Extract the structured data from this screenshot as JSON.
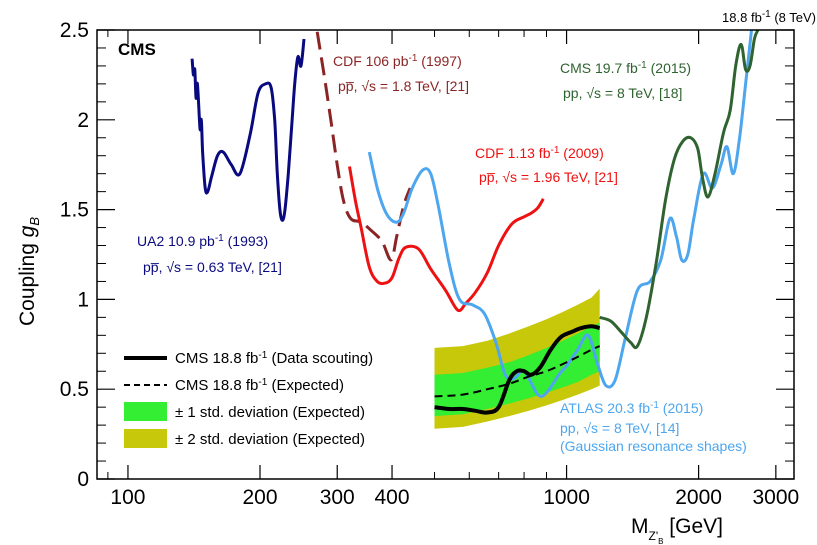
{
  "chart_data": {
    "type": "line",
    "x_axis": {
      "scale": "log",
      "range": [
        85,
        3300
      ],
      "ticks": [
        100,
        200,
        300,
        400,
        1000,
        2000,
        3000
      ],
      "tick_labels": [
        "100",
        "200",
        "300",
        "400",
        "1000",
        "2000",
        "3000"
      ],
      "label_main": "M",
      "label_sub": "Z'",
      "label_subsub": "B",
      "label_unit": " [GeV]"
    },
    "y_axis": {
      "scale": "linear",
      "range": [
        0,
        2.5
      ],
      "ticks": [
        0,
        0.5,
        1,
        1.5,
        2,
        2.5
      ],
      "tick_labels": [
        "0",
        "0.5",
        "1",
        "1.5",
        "2",
        "2.5"
      ],
      "label_main": "Coupling ",
      "label_g": "g",
      "label_sub": "B"
    },
    "top_right": {
      "lumi": "18.8 fb",
      "sup": "-1",
      "energy": " (8 TeV)"
    },
    "experiment": "CMS",
    "colors": {
      "ua2": "#0a0a80",
      "cdf1997": "#8b2525",
      "cdf2009": "#ee1111",
      "atlas": "#4da6ee",
      "cms2015": "#2f632f",
      "band1": "#33ee33",
      "band2": "#c8c80a",
      "observed": "#000000",
      "expected": "#000000"
    },
    "series": [
      {
        "name": "UA2 10.9 pb-1 (1993)",
        "color": "#0a0a80",
        "style": "solid",
        "width": 3,
        "points": [
          [
            140,
            2.34
          ],
          [
            141,
            2.25
          ],
          [
            142,
            2.28
          ],
          [
            143,
            2.12
          ],
          [
            144,
            2.2
          ],
          [
            146,
            1.95
          ],
          [
            147,
            2.0
          ],
          [
            148,
            1.82
          ],
          [
            150,
            1.62
          ],
          [
            152,
            1.6
          ],
          [
            155,
            1.68
          ],
          [
            160,
            1.8
          ],
          [
            165,
            1.82
          ],
          [
            172,
            1.75
          ],
          [
            180,
            1.7
          ],
          [
            190,
            1.92
          ],
          [
            198,
            2.15
          ],
          [
            206,
            2.2
          ],
          [
            212,
            2.18
          ],
          [
            216,
            2.0
          ],
          [
            219,
            1.7
          ],
          [
            222,
            1.5
          ],
          [
            225,
            1.44
          ],
          [
            228,
            1.5
          ],
          [
            232,
            1.7
          ],
          [
            236,
            1.95
          ],
          [
            240,
            2.2
          ],
          [
            244,
            2.35
          ],
          [
            248,
            2.3
          ],
          [
            252,
            2.45
          ]
        ]
      },
      {
        "name": "CDF 106 pb-1 (1997)",
        "color": "#8b2525",
        "style": "dashed",
        "width": 3,
        "points": [
          [
            270,
            2.49
          ],
          [
            280,
            2.25
          ],
          [
            290,
            2.0
          ],
          [
            300,
            1.75
          ],
          [
            310,
            1.55
          ],
          [
            322,
            1.45
          ],
          [
            340,
            1.43
          ],
          [
            360,
            1.38
          ],
          [
            380,
            1.32
          ],
          [
            398,
            1.22
          ],
          [
            410,
            1.35
          ],
          [
            425,
            1.52
          ],
          [
            440,
            1.62
          ]
        ]
      },
      {
        "name": "CDF 1.13 fb-1 (2009)",
        "color": "#ee1111",
        "style": "solid",
        "width": 3,
        "points": [
          [
            320,
            1.74
          ],
          [
            330,
            1.55
          ],
          [
            340,
            1.4
          ],
          [
            355,
            1.18
          ],
          [
            370,
            1.1
          ],
          [
            385,
            1.09
          ],
          [
            400,
            1.12
          ],
          [
            415,
            1.23
          ],
          [
            430,
            1.29
          ],
          [
            460,
            1.28
          ],
          [
            490,
            1.17
          ],
          [
            530,
            1.05
          ],
          [
            565,
            0.94
          ],
          [
            590,
            0.98
          ],
          [
            620,
            1.04
          ],
          [
            660,
            1.15
          ],
          [
            700,
            1.3
          ],
          [
            750,
            1.42
          ],
          [
            800,
            1.46
          ],
          [
            830,
            1.48
          ],
          [
            860,
            1.51
          ],
          [
            885,
            1.56
          ]
        ]
      },
      {
        "name": "ATLAS 20.3 fb-1 (2015)",
        "color": "#4da6ee",
        "style": "solid",
        "width": 3,
        "points": [
          [
            355,
            1.82
          ],
          [
            372,
            1.6
          ],
          [
            390,
            1.47
          ],
          [
            410,
            1.43
          ],
          [
            425,
            1.48
          ],
          [
            445,
            1.62
          ],
          [
            470,
            1.72
          ],
          [
            490,
            1.7
          ],
          [
            510,
            1.52
          ],
          [
            540,
            1.2
          ],
          [
            570,
            1.0
          ],
          [
            610,
            0.97
          ],
          [
            650,
            0.92
          ],
          [
            690,
            0.76
          ],
          [
            725,
            0.58
          ],
          [
            760,
            0.56
          ],
          [
            800,
            0.6
          ],
          [
            860,
            0.47
          ],
          [
            900,
            0.48
          ],
          [
            960,
            0.58
          ],
          [
            1000,
            0.63
          ],
          [
            1060,
            0.72
          ],
          [
            1120,
            0.8
          ],
          [
            1180,
            0.63
          ],
          [
            1230,
            0.52
          ],
          [
            1290,
            0.55
          ],
          [
            1360,
            0.78
          ],
          [
            1450,
            1.05
          ],
          [
            1550,
            1.1
          ],
          [
            1640,
            1.22
          ],
          [
            1720,
            1.45
          ],
          [
            1780,
            1.35
          ],
          [
            1830,
            1.22
          ],
          [
            1890,
            1.25
          ],
          [
            1950,
            1.45
          ],
          [
            2050,
            1.7
          ],
          [
            2150,
            1.62
          ],
          [
            2250,
            1.75
          ],
          [
            2320,
            1.85
          ],
          [
            2400,
            1.7
          ],
          [
            2480,
            1.9
          ],
          [
            2560,
            2.2
          ],
          [
            2640,
            2.5
          ]
        ]
      },
      {
        "name": "CMS 19.7 fb-1 (2015)",
        "color": "#2f632f",
        "style": "solid",
        "width": 3,
        "points": [
          [
            1190,
            0.9
          ],
          [
            1260,
            0.88
          ],
          [
            1330,
            0.82
          ],
          [
            1400,
            0.76
          ],
          [
            1450,
            0.74
          ],
          [
            1520,
            0.9
          ],
          [
            1600,
            1.2
          ],
          [
            1680,
            1.55
          ],
          [
            1760,
            1.78
          ],
          [
            1840,
            1.88
          ],
          [
            1920,
            1.9
          ],
          [
            1990,
            1.84
          ],
          [
            2040,
            1.68
          ],
          [
            2100,
            1.57
          ],
          [
            2180,
            1.7
          ],
          [
            2280,
            1.93
          ],
          [
            2360,
            2.05
          ],
          [
            2430,
            2.3
          ],
          [
            2500,
            2.42
          ],
          [
            2560,
            2.28
          ],
          [
            2620,
            2.3
          ],
          [
            2680,
            2.45
          ],
          [
            2730,
            2.5
          ]
        ]
      },
      {
        "name": "CMS 18.8 fb-1 (Data scouting)",
        "color": "#000000",
        "style": "solid",
        "width": 4,
        "points": [
          [
            500,
            0.4
          ],
          [
            540,
            0.39
          ],
          [
            580,
            0.39
          ],
          [
            620,
            0.38
          ],
          [
            660,
            0.37
          ],
          [
            700,
            0.4
          ],
          [
            740,
            0.55
          ],
          [
            770,
            0.6
          ],
          [
            800,
            0.6
          ],
          [
            830,
            0.58
          ],
          [
            870,
            0.62
          ],
          [
            920,
            0.72
          ],
          [
            970,
            0.79
          ],
          [
            1030,
            0.82
          ],
          [
            1080,
            0.84
          ],
          [
            1140,
            0.85
          ],
          [
            1190,
            0.84
          ]
        ]
      },
      {
        "name": "CMS 18.8 fb-1 (Expected)",
        "color": "#000000",
        "style": "dashed",
        "width": 2,
        "points": [
          [
            500,
            0.46
          ],
          [
            580,
            0.47
          ],
          [
            660,
            0.5
          ],
          [
            740,
            0.53
          ],
          [
            820,
            0.57
          ],
          [
            900,
            0.6
          ],
          [
            980,
            0.64
          ],
          [
            1060,
            0.68
          ],
          [
            1140,
            0.72
          ],
          [
            1190,
            0.74
          ]
        ]
      }
    ],
    "bands": {
      "x": [
        500,
        580,
        660,
        740,
        820,
        900,
        980,
        1060,
        1140,
        1190
      ],
      "sigma1_lo": [
        0.35,
        0.36,
        0.39,
        0.42,
        0.45,
        0.48,
        0.51,
        0.54,
        0.58,
        0.6
      ],
      "sigma1_hi": [
        0.58,
        0.59,
        0.62,
        0.65,
        0.69,
        0.73,
        0.77,
        0.81,
        0.85,
        0.87
      ],
      "sigma2_lo": [
        0.28,
        0.29,
        0.32,
        0.35,
        0.38,
        0.41,
        0.44,
        0.47,
        0.5,
        0.52
      ],
      "sigma2_hi": [
        0.73,
        0.74,
        0.77,
        0.81,
        0.85,
        0.89,
        0.93,
        0.97,
        1.01,
        1.06
      ]
    }
  },
  "annotations": {
    "ua2": {
      "line1_a": "UA2 10.9 pb",
      "line1_sup": "-1",
      "line1_b": " (1993)",
      "line2": "pp̅, √s = 0.63 TeV, [21]"
    },
    "cdf1997": {
      "line1_a": "CDF 106 pb",
      "line1_sup": "-1",
      "line1_b": " (1997)",
      "line2": "pp̅, √s = 1.8 TeV, [21]"
    },
    "cdf2009": {
      "line1_a": "CDF 1.13 fb",
      "line1_sup": "-1",
      "line1_b": " (2009)",
      "line2": "pp̅, √s = 1.96 TeV, [21]"
    },
    "cms2015": {
      "line1_a": "CMS 19.7 fb",
      "line1_sup": "-1",
      "line1_b": " (2015)",
      "line2": "pp, √s = 8 TeV, [18]"
    },
    "atlas": {
      "line1_a": "ATLAS 20.3 fb",
      "line1_sup": "-1",
      "line1_b": " (2015)",
      "line2": "pp, √s = 8 TeV, [14]",
      "line3": "(Gaussian resonance shapes)"
    }
  },
  "legend": {
    "observed": {
      "a": "CMS 18.8 fb",
      "sup": "-1",
      "b": " (Data scouting)"
    },
    "expected": {
      "a": "CMS 18.8 fb",
      "sup": "-1",
      "b": " (Expected)"
    },
    "sigma1": "± 1 std. deviation (Expected)",
    "sigma2": "± 2 std. deviation (Expected)"
  }
}
